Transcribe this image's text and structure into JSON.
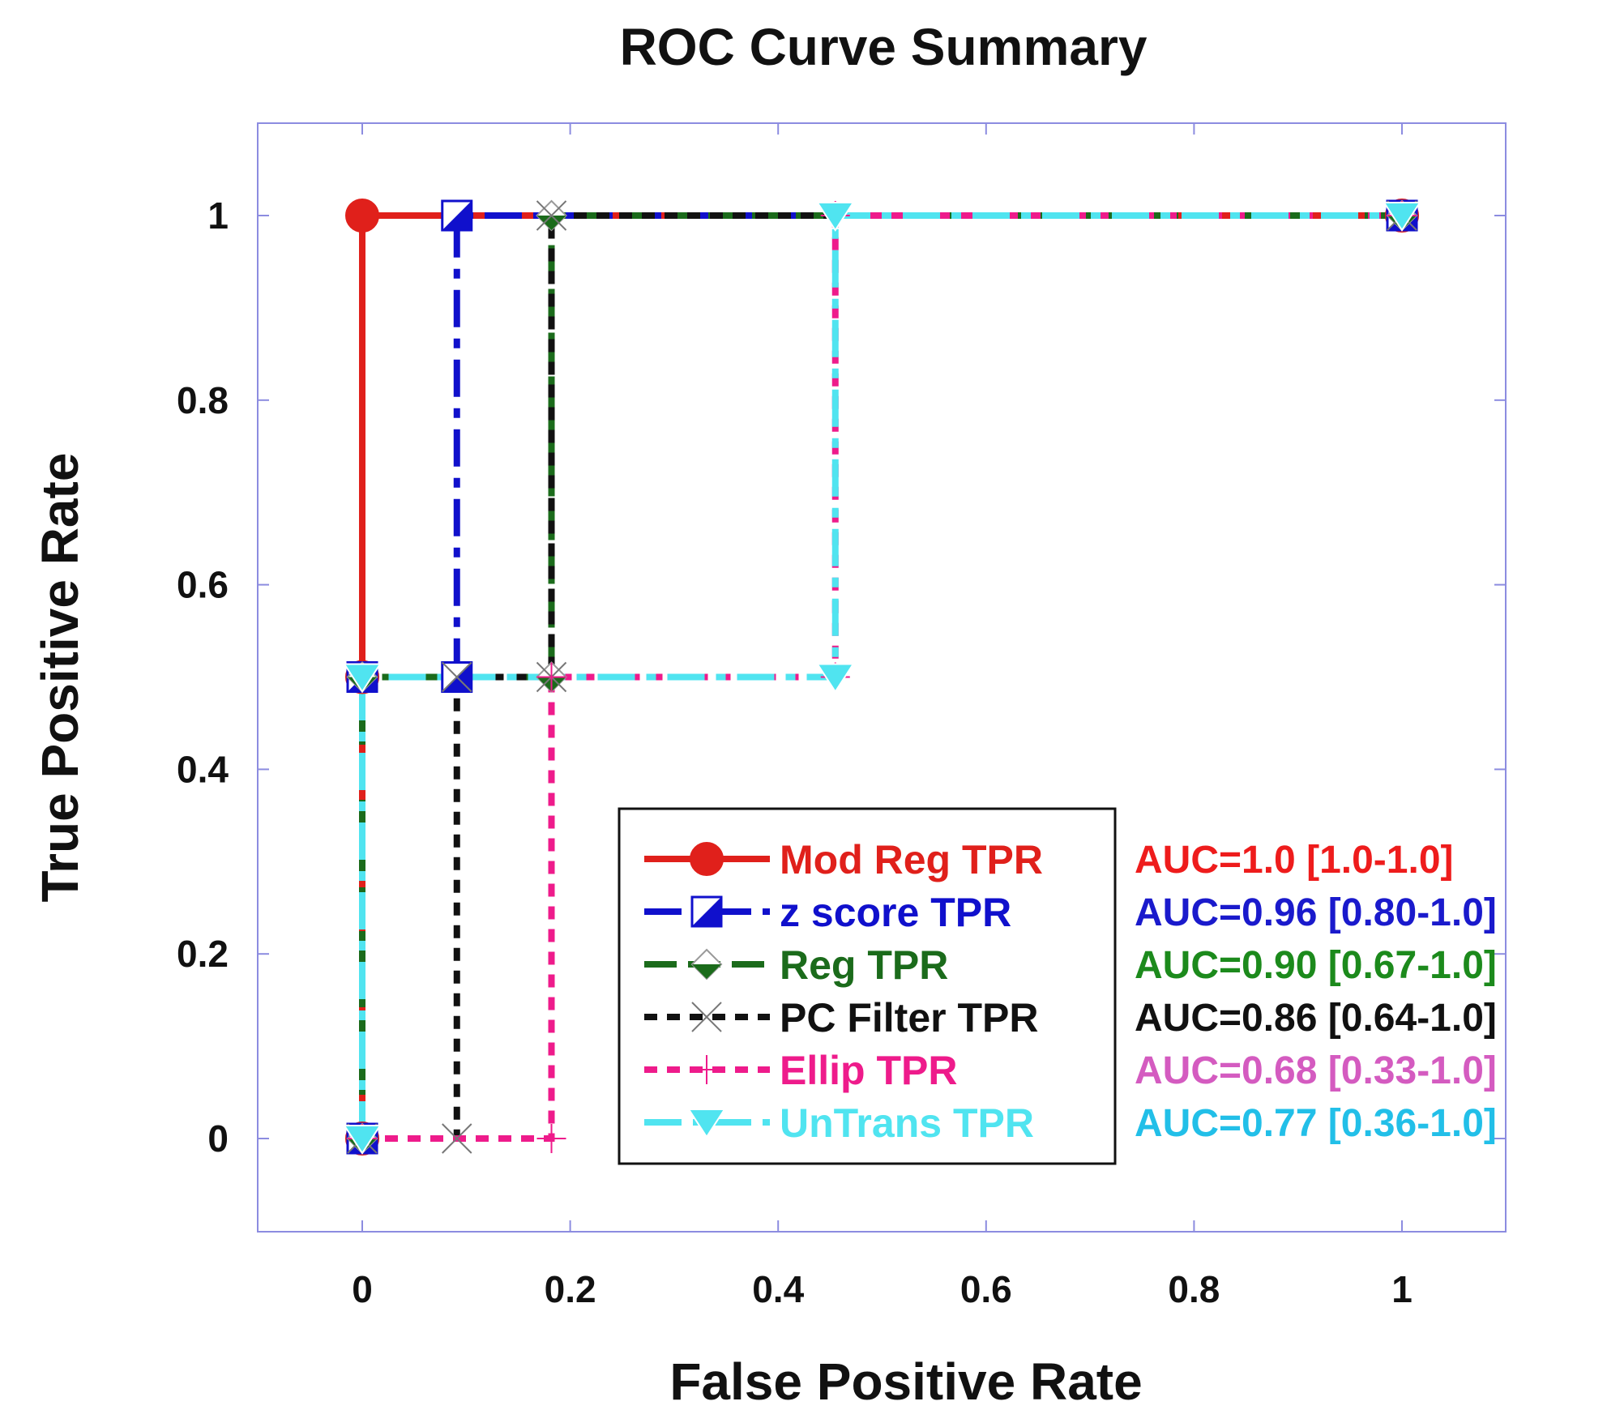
{
  "chart_data": {
    "type": "line",
    "title": "ROC Curve Summary",
    "xlabel": "False Positive Rate",
    "ylabel": "True Positive Rate",
    "xlim": [
      -0.1,
      1.1
    ],
    "ylim": [
      -0.1,
      1.1
    ],
    "xticks": [
      0,
      0.2,
      0.4,
      0.6,
      0.8,
      1
    ],
    "yticks": [
      0,
      0.2,
      0.4,
      0.6,
      0.8,
      1
    ],
    "xtick_labels": [
      "0",
      "0.2",
      "0.4",
      "0.6",
      "0.8",
      "1"
    ],
    "ytick_labels": [
      "0",
      "0.2",
      "0.4",
      "0.6",
      "0.8",
      "1"
    ],
    "grid": false,
    "legend_position": "lower-right",
    "series": [
      {
        "name": "Mod Reg TPR",
        "color": "#e0201b",
        "dash": "solid",
        "marker": "circle",
        "x": [
          0,
          0,
          0,
          1
        ],
        "y": [
          0,
          0.5,
          1,
          1
        ],
        "auc": "AUC=1.0 [1.0-1.0]",
        "auc_color": "#ee1c1c"
      },
      {
        "name": "z score TPR",
        "color": "#1010cc",
        "dash": "dashdot",
        "marker": "half-square",
        "x": [
          0,
          0,
          0.091,
          0.091,
          1
        ],
        "y": [
          0,
          0.5,
          0.5,
          1,
          1
        ],
        "auc": "AUC=0.96 [0.80-1.0]",
        "auc_color": "#1a1acc"
      },
      {
        "name": "Reg TPR",
        "color": "#1b6b1b",
        "dash": "dashed",
        "marker": "diamond-down",
        "x": [
          0,
          0,
          0.182,
          0.182,
          1
        ],
        "y": [
          0,
          0.5,
          0.5,
          1,
          1
        ],
        "auc": "AUC=0.90 [0.67-1.0]",
        "auc_color": "#1c8a1c"
      },
      {
        "name": "PC Filter TPR",
        "color": "#111111",
        "dash": "dotted",
        "marker": "x",
        "x": [
          0,
          0.091,
          0.091,
          0.182,
          0.182,
          1
        ],
        "y": [
          0,
          0,
          0.5,
          0.5,
          1,
          1
        ],
        "auc": "AUC=0.86 [0.64-1.0]",
        "auc_color": "#111111"
      },
      {
        "name": "Ellip TPR",
        "color": "#ee1b8b",
        "dash": "dotted",
        "marker": "plus",
        "x": [
          0,
          0.182,
          0.182,
          0.455,
          0.455,
          1
        ],
        "y": [
          0,
          0,
          0.5,
          0.5,
          1,
          1
        ],
        "auc": "AUC=0.68 [0.33-1.0]",
        "auc_color": "#d45bc0"
      },
      {
        "name": "UnTrans TPR",
        "color": "#50e4f0",
        "dash": "dashdot",
        "marker": "triangle-down",
        "x": [
          0,
          0,
          0.455,
          0.455,
          1
        ],
        "y": [
          0,
          0.5,
          0.5,
          1,
          1
        ],
        "auc": "AUC=0.77 [0.36-1.0]",
        "auc_color": "#22bfe8"
      }
    ]
  }
}
